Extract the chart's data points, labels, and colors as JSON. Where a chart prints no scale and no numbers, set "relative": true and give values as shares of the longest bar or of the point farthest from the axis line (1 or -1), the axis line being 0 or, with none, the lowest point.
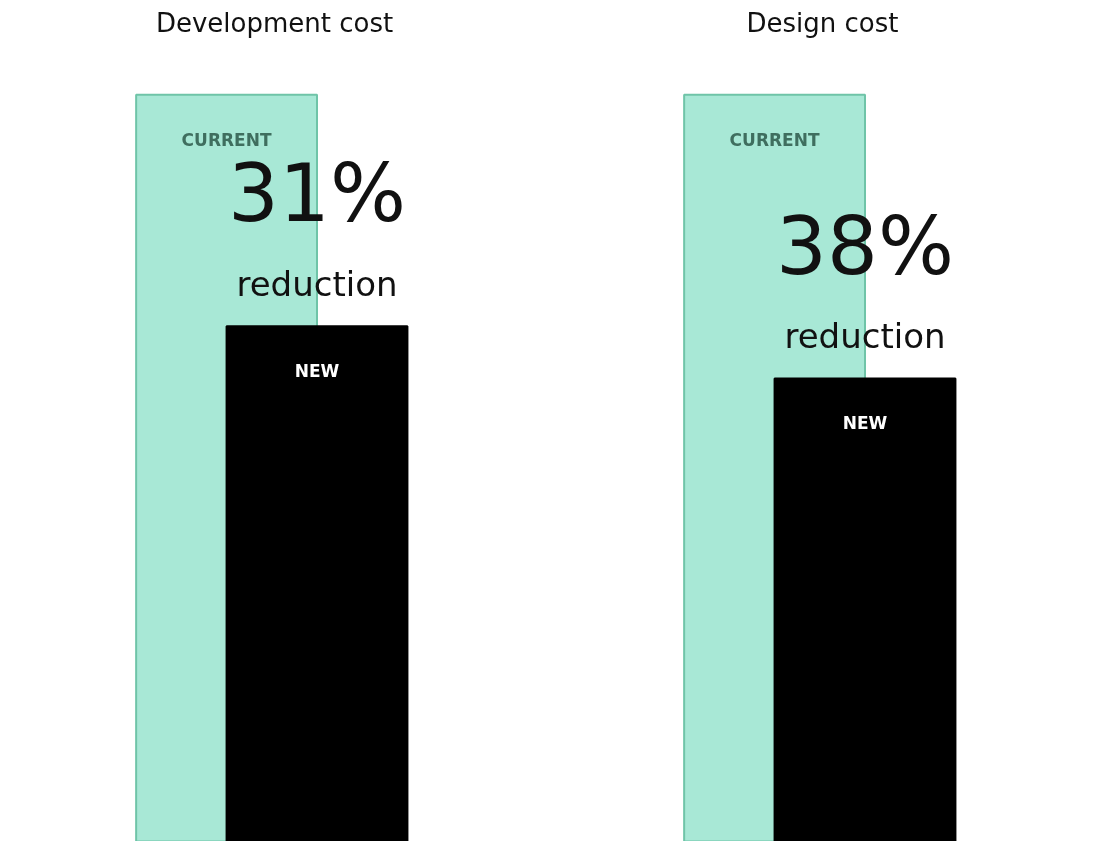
{
  "chart_data": [
    {
      "type": "bar",
      "title": "Development cost",
      "relative": true,
      "categories": [
        null
      ],
      "series": [
        {
          "name": "CURRENT",
          "color": "#a8e8d6",
          "values": [
            1
          ]
        },
        {
          "name": "NEW",
          "color": "#000000",
          "values": [
            0.69
          ]
        }
      ],
      "annotations": [
        "31%",
        "reduction"
      ]
    },
    {
      "type": "bar",
      "title": "Design cost",
      "relative": true,
      "categories": [
        null
      ],
      "series": [
        {
          "name": "CURRENT",
          "color": "#a8e8d6",
          "values": [
            1
          ]
        },
        {
          "name": "NEW",
          "color": "#000000",
          "values": [
            0.62
          ]
        }
      ],
      "annotations": [
        "38%",
        "reduction"
      ]
    }
  ]
}
